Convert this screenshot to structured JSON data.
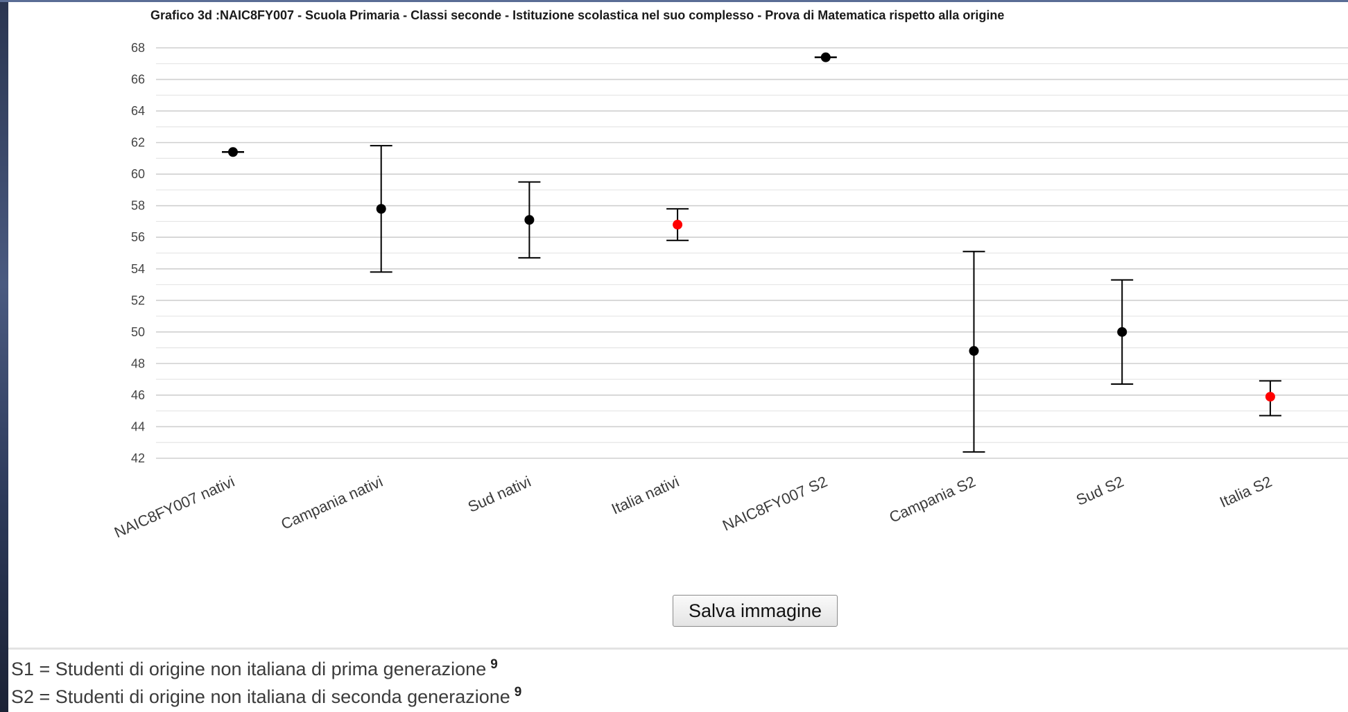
{
  "chart_data": {
    "type": "errorbar",
    "title": "Grafico 3d :NAIC8FY007 - Scuola Primaria - Classi seconde - Istituzione scolastica nel suo complesso - Prova di Matematica rispetto alla origine",
    "xlabel": "",
    "ylabel": "",
    "ylim": [
      42,
      68
    ],
    "yticks": [
      42,
      44,
      46,
      48,
      50,
      52,
      54,
      56,
      58,
      60,
      62,
      64,
      66,
      68
    ],
    "grid": true,
    "categories": [
      "NAIC8FY007 nativi",
      "Campania nativi",
      "Sud nativi",
      "Italia nativi",
      "NAIC8FY007 S2",
      "Campania S2",
      "Sud S2",
      "Italia S2"
    ],
    "values": [
      61.4,
      57.8,
      57.1,
      56.8,
      67.4,
      48.8,
      50.0,
      45.9
    ],
    "lower": [
      61.4,
      53.8,
      54.7,
      55.8,
      67.4,
      42.4,
      46.7,
      44.7
    ],
    "upper": [
      61.4,
      61.8,
      59.5,
      57.8,
      67.4,
      55.1,
      53.3,
      46.9
    ],
    "point_colors": [
      "#000000",
      "#000000",
      "#000000",
      "#ff0000",
      "#000000",
      "#000000",
      "#000000",
      "#ff0000"
    ]
  },
  "ui": {
    "save_button_label": "Salva immagine"
  },
  "legend": [
    {
      "text": "S1 = Studenti di origine non italiana di prima generazione",
      "note": "9"
    },
    {
      "text": "S2 = Studenti di origine non italiana di seconda generazione",
      "note": "9"
    }
  ]
}
